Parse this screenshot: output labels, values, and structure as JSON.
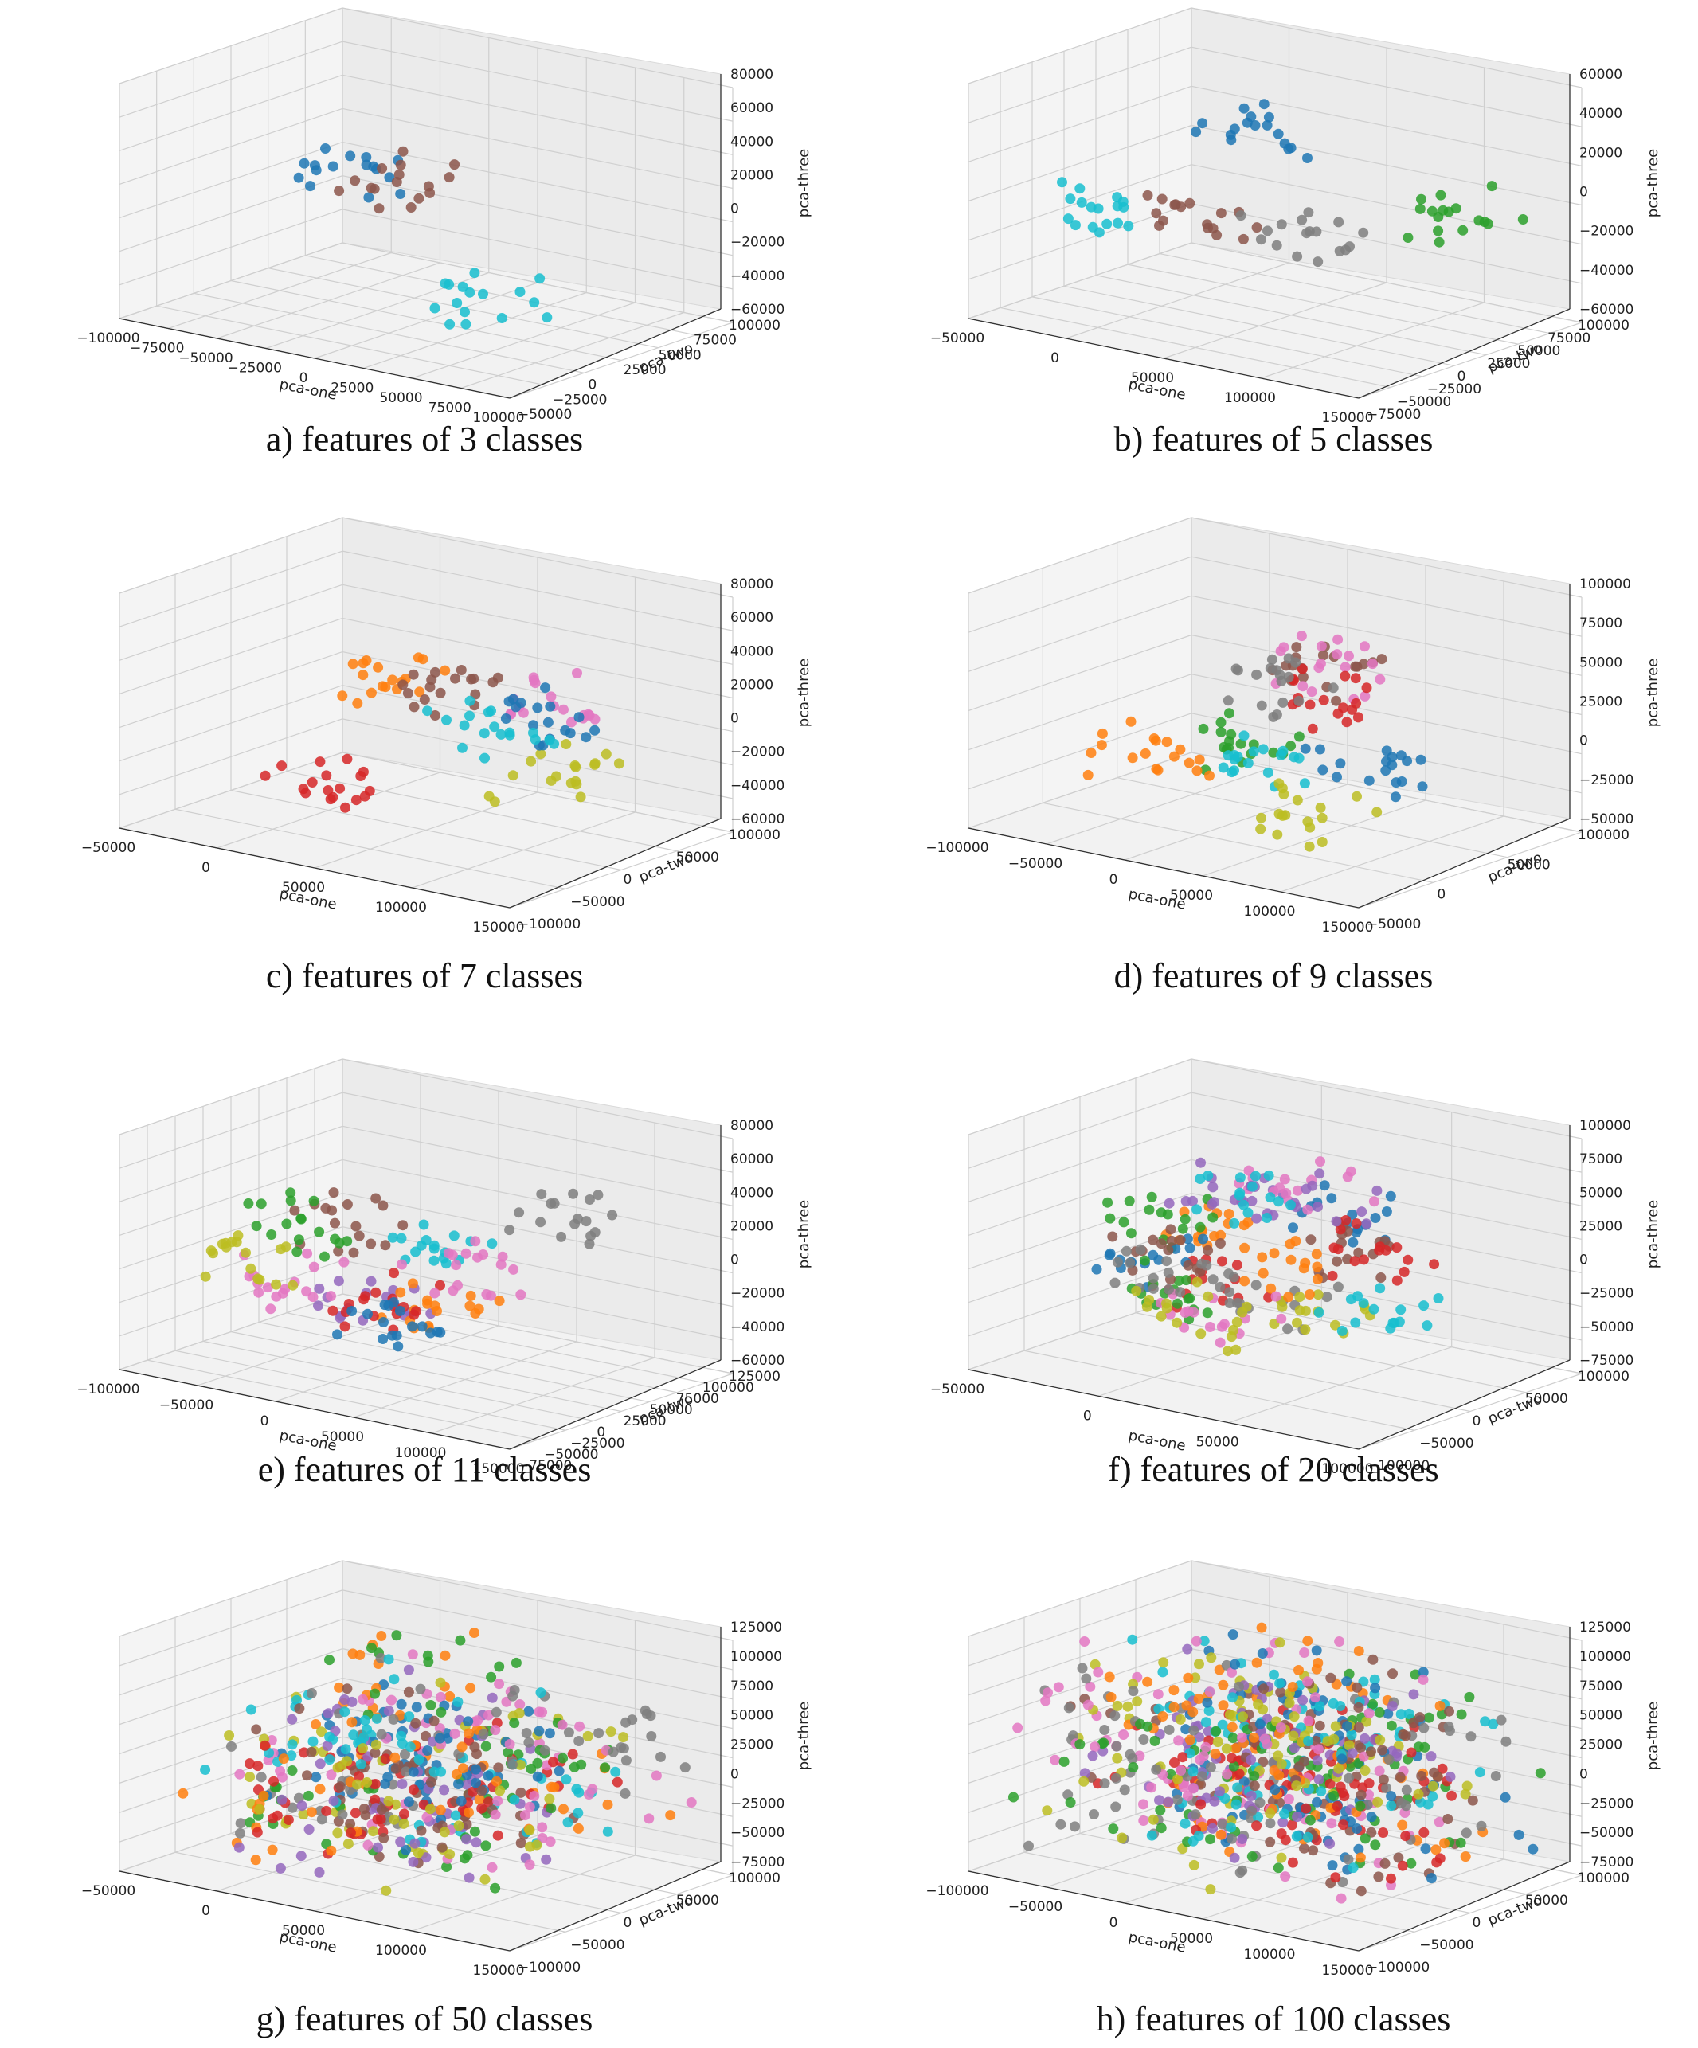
{
  "chart_data": [
    {
      "type": "scatter",
      "caption": "a) features of 3 classes",
      "xlabel": "pca-one",
      "ylabel": "pca-two",
      "zlabel": "pca-three",
      "xlim": [
        -100000,
        100000
      ],
      "ylim": [
        -50000,
        100000
      ],
      "zlim": [
        -60000,
        80000
      ],
      "xticks": [
        "−100000",
        "−75000",
        "−50000",
        "−25000",
        "0",
        "25000",
        "50000",
        "75000",
        "100000"
      ],
      "yticks": [
        "−50000",
        "−25000",
        "0",
        "25000",
        "50000",
        "75000",
        "100000"
      ],
      "zticks": [
        "80000",
        "60000",
        "40000",
        "20000",
        "0",
        "−20000",
        "−40000",
        "−60000"
      ],
      "classes": 3,
      "points_per_class": 16,
      "palette": [
        "#1f77b4",
        "#8c564b",
        "#17becf"
      ],
      "grid": true
    },
    {
      "type": "scatter",
      "caption": "b) features of 5 classes",
      "xlabel": "pca-one",
      "ylabel": "pca-two",
      "zlabel": "pca-three",
      "xlim": [
        -50000,
        150000
      ],
      "ylim": [
        -75000,
        100000
      ],
      "zlim": [
        -60000,
        60000
      ],
      "xticks": [
        "−50000",
        "0",
        "50000",
        "100000",
        "150000"
      ],
      "yticks": [
        "−75000",
        "−50000",
        "−25000",
        "0",
        "25000",
        "50000",
        "75000",
        "100000"
      ],
      "zticks": [
        "60000",
        "40000",
        "20000",
        "0",
        "−20000",
        "−40000",
        "−60000"
      ],
      "classes": 5,
      "points_per_class": 17,
      "palette": [
        "#1f77b4",
        "#8c564b",
        "#2ca02c",
        "#17becf",
        "#7f7f7f"
      ],
      "grid": true
    },
    {
      "type": "scatter",
      "caption": "c) features of 7 classes",
      "xlabel": "pca-one",
      "ylabel": "pca-two",
      "zlabel": "pca-three",
      "xlim": [
        -50000,
        150000
      ],
      "ylim": [
        -100000,
        100000
      ],
      "zlim": [
        -60000,
        80000
      ],
      "xticks": [
        "−50000",
        "0",
        "50000",
        "100000",
        "150000"
      ],
      "yticks": [
        "−100000",
        "−50000",
        "0",
        "50000",
        "100000"
      ],
      "zticks": [
        "80000",
        "60000",
        "40000",
        "20000",
        "0",
        "−20000",
        "−40000",
        "−60000"
      ],
      "classes": 7,
      "points_per_class": 18,
      "palette": [
        "#d62728",
        "#e377c2",
        "#bcbd22",
        "#ff7f0e",
        "#1f77b4",
        "#8c564b",
        "#17becf"
      ],
      "grid": true
    },
    {
      "type": "scatter",
      "caption": "d) features of 9 classes",
      "xlabel": "pca-one",
      "ylabel": "pca-two",
      "zlabel": "pca-three",
      "xlim": [
        -100000,
        150000
      ],
      "ylim": [
        -50000,
        100000
      ],
      "zlim": [
        -50000,
        100000
      ],
      "xticks": [
        "−100000",
        "−50000",
        "0",
        "50000",
        "100000",
        "150000"
      ],
      "yticks": [
        "−50000",
        "0",
        "50000",
        "100000"
      ],
      "zticks": [
        "100000",
        "75000",
        "50000",
        "25000",
        "0",
        "−25000",
        "−50000"
      ],
      "classes": 9,
      "points_per_class": 18,
      "palette": [
        "#2ca02c",
        "#8c564b",
        "#e377c2",
        "#17becf",
        "#1f77b4",
        "#d62728",
        "#ff7f0e",
        "#bcbd22",
        "#7f7f7f"
      ],
      "grid": true
    },
    {
      "type": "scatter",
      "caption": "e) features of 11 classes",
      "xlabel": "pca-one",
      "ylabel": "pca-two",
      "zlabel": "pca-three",
      "xlim": [
        -100000,
        150000
      ],
      "ylim": [
        -75000,
        125000
      ],
      "zlim": [
        -60000,
        80000
      ],
      "xticks": [
        "−100000",
        "−50000",
        "0",
        "50000",
        "100000",
        "150000"
      ],
      "yticks": [
        "−75000",
        "−50000",
        "−25000",
        "0",
        "25000",
        "50000",
        "75000",
        "100000",
        "125000"
      ],
      "zticks": [
        "80000",
        "60000",
        "40000",
        "20000",
        "0",
        "−20000",
        "−40000",
        "−60000"
      ],
      "classes": 11,
      "points_per_class": 17,
      "palette": [
        "#17becf",
        "#8c564b",
        "#9467bd",
        "#ff7f0e",
        "#2ca02c",
        "#e377c2",
        "#d62728",
        "#7f7f7f",
        "#bcbd22",
        "#1f77b4",
        "#e377c2"
      ],
      "grid": true
    },
    {
      "type": "scatter",
      "caption": "f) features of 20 classes",
      "xlabel": "pca-one",
      "ylabel": "pca-two",
      "zlabel": "pca-three",
      "xlim": [
        -50000,
        150000
      ],
      "ylim": [
        -100000,
        100000
      ],
      "zlim": [
        -75000,
        100000
      ],
      "xticks": [
        "−50000",
        "0",
        "50000",
        "100000"
      ],
      "yticks": [
        "−100000",
        "−50000",
        "0",
        "50000",
        "100000"
      ],
      "zticks": [
        "100000",
        "75000",
        "50000",
        "25000",
        "0",
        "−25000",
        "−50000",
        "−75000"
      ],
      "classes": 20,
      "points_per_class": 16,
      "palette": [
        "#1f77b4",
        "#ff7f0e",
        "#2ca02c",
        "#d62728",
        "#9467bd",
        "#8c564b",
        "#e377c2",
        "#7f7f7f",
        "#bcbd22",
        "#17becf"
      ],
      "grid": true
    },
    {
      "type": "scatter",
      "caption": "g) features of 50 classes",
      "xlabel": "pca-one",
      "ylabel": "pca-two",
      "zlabel": "pca-three",
      "xlim": [
        -50000,
        150000
      ],
      "ylim": [
        -100000,
        100000
      ],
      "zlim": [
        -75000,
        125000
      ],
      "xticks": [
        "−50000",
        "0",
        "50000",
        "100000",
        "150000"
      ],
      "yticks": [
        "−100000",
        "−50000",
        "0",
        "50000",
        "100000"
      ],
      "zticks": [
        "125000",
        "100000",
        "75000",
        "50000",
        "25000",
        "0",
        "−25000",
        "−50000",
        "−75000"
      ],
      "classes": 50,
      "points_per_class": 12,
      "palette": [
        "#1f77b4",
        "#ff7f0e",
        "#2ca02c",
        "#d62728",
        "#9467bd",
        "#8c564b",
        "#e377c2",
        "#7f7f7f",
        "#bcbd22",
        "#17becf"
      ],
      "grid": true
    },
    {
      "type": "scatter",
      "caption": "h) features of 100 classes",
      "xlabel": "pca-one",
      "ylabel": "pca-two",
      "zlabel": "pca-three",
      "xlim": [
        -100000,
        150000
      ],
      "ylim": [
        -100000,
        100000
      ],
      "zlim": [
        -75000,
        125000
      ],
      "xticks": [
        "−100000",
        "−50000",
        "0",
        "50000",
        "100000",
        "150000"
      ],
      "yticks": [
        "−100000",
        "−50000",
        "0",
        "50000",
        "100000"
      ],
      "zticks": [
        "125000",
        "100000",
        "75000",
        "50000",
        "25000",
        "0",
        "−25000",
        "−50000",
        "−75000"
      ],
      "classes": 100,
      "points_per_class": 8,
      "palette": [
        "#1f77b4",
        "#ff7f0e",
        "#2ca02c",
        "#d62728",
        "#9467bd",
        "#8c564b",
        "#e377c2",
        "#7f7f7f",
        "#bcbd22",
        "#17becf"
      ],
      "grid": true
    }
  ]
}
